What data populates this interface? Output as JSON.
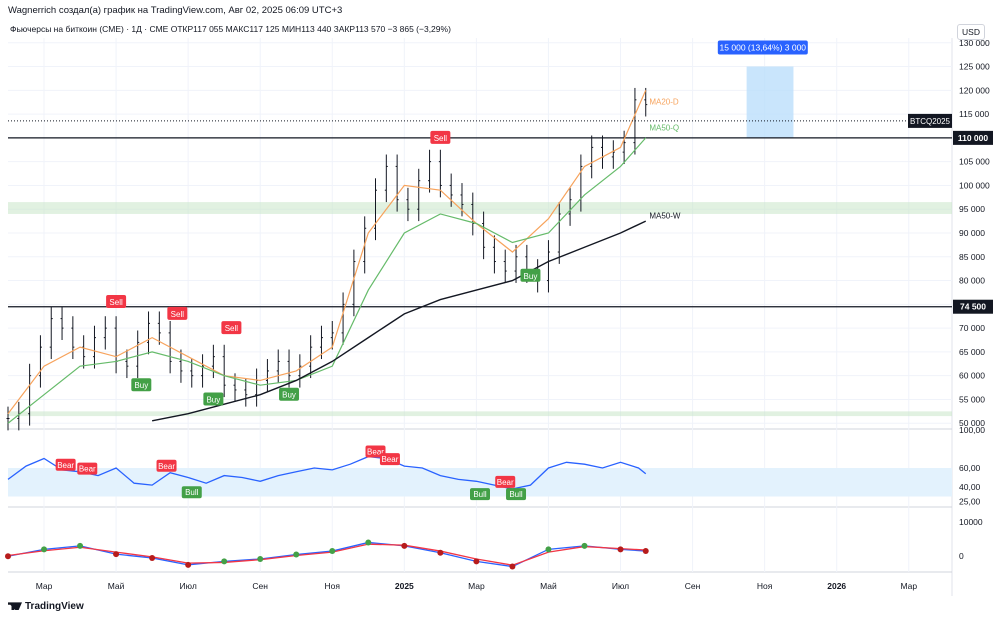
{
  "header": {
    "attribution": "Wagnerrich создал(а) график на TradingView.com, Авг 02, 2025 06:09 UTC+3"
  },
  "legend": {
    "symbol": "Фьючерсы на биткоин (CME) · 1Д · CME",
    "open": "ОТКР117 055",
    "high": "МАКС117 125",
    "low": "МИН113 440",
    "close": "ЗАКР113 570",
    "change": "−3 865 (−3,29%)"
  },
  "currency": "USD",
  "brand": "TradingView",
  "colors": {
    "up": "#089981",
    "down": "#f23645",
    "rsi": "#2962ff",
    "ma20": "#f7a35c",
    "ma50q": "#66bb6a",
    "ma50w": "#131722",
    "resistance": "#f23645",
    "support": "#43a047"
  },
  "chart_data": [
    {
      "type": "line",
      "panel": "price",
      "y_ticks": [
        50000,
        55000,
        60000,
        65000,
        70000,
        75000,
        80000,
        85000,
        90000,
        95000,
        100000,
        105000,
        110000,
        115000,
        120000,
        125000,
        130000
      ],
      "y_tick_labels": [
        "50 000",
        "55 000",
        "60 000",
        "65 000",
        "70 000",
        "75 000",
        "80 000",
        "85 000",
        "90 000",
        "95 000",
        "100 000",
        "105 000",
        "110 000",
        "115 000",
        "120 000",
        "125 000",
        "130 000"
      ],
      "ylim": [
        49000,
        131000
      ],
      "x_tick_labels": [
        "Мар",
        "Май",
        "Июл",
        "Сен",
        "Ноя",
        "2025",
        "Мар",
        "Май",
        "Июл",
        "Сен",
        "Ноя",
        "2026",
        "Мар"
      ],
      "x_tick_index": [
        10,
        30,
        50,
        70,
        90,
        110,
        130,
        150,
        170,
        190,
        210,
        230,
        250
      ],
      "x_total": 262,
      "series": [
        {
          "name": "",
          "kind": "price",
          "x": [
            0,
            3,
            6,
            9,
            12,
            15,
            18,
            21,
            24,
            27,
            30,
            33,
            36,
            39,
            42,
            45,
            48,
            51,
            54,
            57,
            60,
            63,
            66,
            69,
            72,
            75,
            78,
            81,
            84,
            87,
            90,
            93,
            96,
            99,
            102,
            105,
            108,
            111,
            114,
            117,
            120,
            123,
            126,
            129,
            132,
            135,
            138,
            141,
            144,
            147,
            150,
            153,
            156,
            159,
            162,
            165,
            168,
            171,
            174,
            177
          ],
          "y": [
            51000,
            52000,
            60000,
            66000,
            72000,
            70000,
            66000,
            64000,
            68000,
            70000,
            63000,
            62000,
            67000,
            71000,
            69000,
            63000,
            61000,
            60000,
            62000,
            64000,
            58000,
            57000,
            56000,
            59000,
            61000,
            63000,
            60000,
            62000,
            66000,
            68000,
            69000,
            75000,
            84000,
            91000,
            99000,
            104000,
            97000,
            95000,
            101000,
            105000,
            100000,
            98000,
            96000,
            92000,
            87000,
            84000,
            82000,
            85000,
            82000,
            80000,
            86000,
            94000,
            97000,
            104000,
            108000,
            106000,
            107000,
            109000,
            118000,
            117000
          ]
        },
        {
          "name": "MA20-D",
          "x": [
            0,
            10,
            20,
            30,
            40,
            50,
            60,
            70,
            80,
            90,
            100,
            110,
            120,
            130,
            140,
            150,
            160,
            170,
            177
          ],
          "y": [
            52000,
            62000,
            66000,
            64000,
            68000,
            64000,
            60000,
            59000,
            61000,
            66000,
            90000,
            100000,
            99000,
            92000,
            86000,
            93000,
            104000,
            108000,
            120000
          ]
        },
        {
          "name": "MA50-Q",
          "x": [
            0,
            10,
            20,
            30,
            40,
            50,
            60,
            70,
            80,
            90,
            100,
            110,
            120,
            130,
            140,
            150,
            160,
            170,
            177
          ],
          "y": [
            50000,
            56000,
            62000,
            63000,
            65000,
            63000,
            60000,
            58000,
            59000,
            62000,
            78000,
            90000,
            94000,
            92000,
            88000,
            90000,
            98000,
            104000,
            110000
          ]
        },
        {
          "name": "MA50-W",
          "x": [
            40,
            50,
            60,
            70,
            80,
            90,
            100,
            110,
            120,
            130,
            140,
            150,
            160,
            170,
            177
          ],
          "y": [
            50500,
            52000,
            54000,
            56000,
            59000,
            63000,
            68000,
            73000,
            76000,
            78000,
            80000,
            84000,
            87000,
            90000,
            92500
          ]
        }
      ],
      "horizontal_lines": [
        {
          "label": "110 000",
          "value": 110000
        },
        {
          "label": "74 500",
          "value": 74500
        }
      ],
      "zones": [
        {
          "from": 94000,
          "to": 96500
        },
        {
          "from": 51500,
          "to": 52500
        }
      ],
      "price_label": {
        "text": "BTCQ2025",
        "value": 113570
      },
      "projection": {
        "text": "15 000 (13,64%) 3 000",
        "from": 110000,
        "to": 125000
      },
      "annotations": [
        {
          "text": "Sell",
          "x": 120,
          "y": 110000
        },
        {
          "text": "Sell",
          "x": 30,
          "y": 75500
        },
        {
          "text": "Sell",
          "x": 47,
          "y": 73000
        },
        {
          "text": "Sell",
          "x": 62,
          "y": 70000
        },
        {
          "text": "Buy",
          "x": 37,
          "y": 58000
        },
        {
          "text": "Buy",
          "x": 57,
          "y": 55000
        },
        {
          "text": "Buy",
          "x": 78,
          "y": 56000
        },
        {
          "text": "Buy",
          "x": 145,
          "y": 81000
        },
        {
          "text": "MA20-D",
          "x": 178,
          "y": 117000
        },
        {
          "text": "MA50-Q",
          "x": 178,
          "y": 111500
        },
        {
          "text": "MA50-W",
          "x": 178,
          "y": 93000
        }
      ]
    },
    {
      "type": "line",
      "panel": "rsi",
      "y_tick_labels": [
        "100,00",
        "60,00",
        "40,00",
        "25,00"
      ],
      "y_ticks": [
        100,
        60,
        40,
        25
      ],
      "ylim": [
        20,
        100
      ],
      "series": [
        {
          "name": "",
          "x": [
            0,
            5,
            10,
            15,
            20,
            25,
            30,
            35,
            40,
            45,
            50,
            55,
            60,
            65,
            70,
            75,
            80,
            85,
            90,
            95,
            100,
            105,
            110,
            115,
            120,
            125,
            130,
            135,
            140,
            145,
            150,
            155,
            160,
            165,
            170,
            175,
            177
          ],
          "y": [
            48,
            62,
            70,
            58,
            56,
            52,
            60,
            44,
            42,
            55,
            50,
            44,
            52,
            50,
            46,
            52,
            56,
            60,
            58,
            64,
            72,
            70,
            62,
            60,
            52,
            48,
            46,
            42,
            38,
            42,
            60,
            66,
            64,
            60,
            66,
            60,
            54
          ]
        }
      ],
      "labels": [
        {
          "text": "Bear",
          "x": 16
        },
        {
          "text": "Bear",
          "x": 22
        },
        {
          "text": "Bear",
          "x": 44
        },
        {
          "text": "Bear",
          "x": 102
        },
        {
          "text": "Bear",
          "x": 106
        },
        {
          "text": "Bear",
          "x": 138
        },
        {
          "text": "Bull",
          "x": 51
        },
        {
          "text": "Bull",
          "x": 131
        },
        {
          "text": "Bull",
          "x": 141
        }
      ]
    },
    {
      "type": "line",
      "panel": "macd",
      "y_tick_labels": [
        "10000",
        "0"
      ],
      "y_ticks": [
        10000,
        0
      ],
      "ylim": [
        -4000,
        14000
      ],
      "series": [
        {
          "name": "",
          "x": [
            0,
            10,
            20,
            30,
            40,
            50,
            60,
            70,
            80,
            90,
            100,
            110,
            120,
            130,
            140,
            150,
            160,
            170,
            177
          ],
          "y": [
            0,
            2000,
            3000,
            600,
            -500,
            -2500,
            -1500,
            -800,
            500,
            1500,
            4000,
            3000,
            1000,
            -1500,
            -3000,
            2000,
            3000,
            2000,
            1500
          ]
        },
        {
          "name": "",
          "x": [
            0,
            10,
            20,
            30,
            40,
            50,
            60,
            70,
            80,
            90,
            100,
            110,
            120,
            130,
            140,
            150,
            160,
            170,
            177
          ],
          "y": [
            200,
            1600,
            2600,
            1200,
            -200,
            -2000,
            -1800,
            -1000,
            200,
            1200,
            3500,
            3200,
            1500,
            -800,
            -2600,
            1200,
            2800,
            2200,
            1800
          ]
        }
      ]
    }
  ]
}
